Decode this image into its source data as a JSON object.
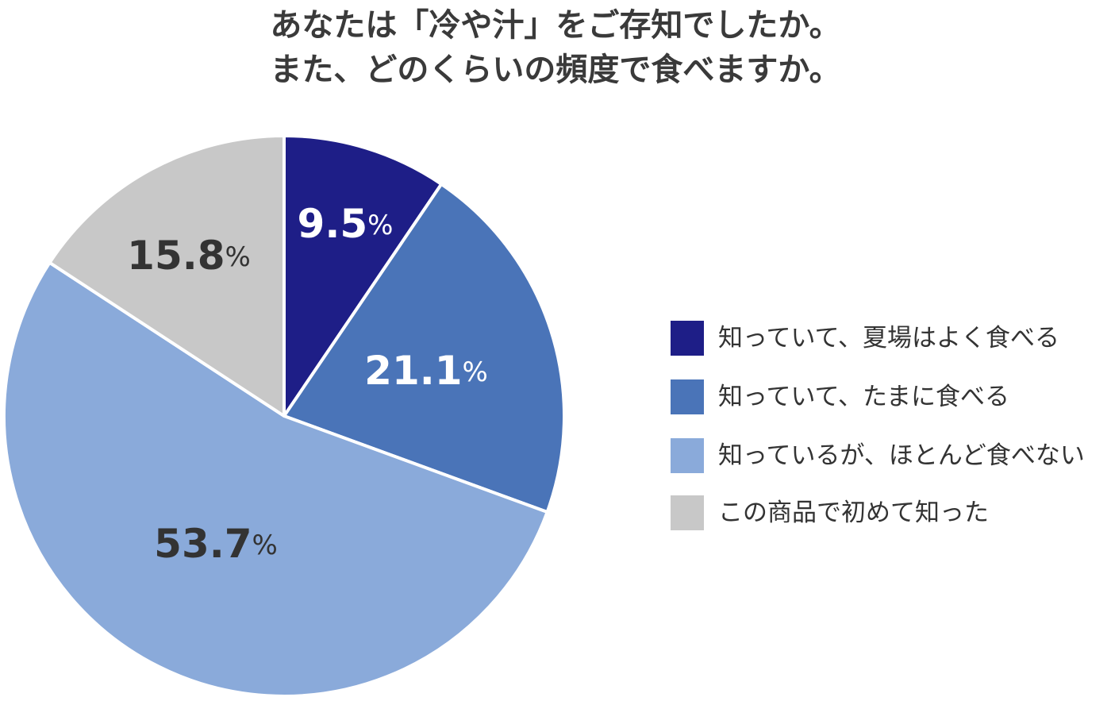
{
  "chart_data": {
    "type": "pie",
    "title_lines": [
      "あなたは「冷や汁」をご存知でしたか。",
      "また、どのくらいの頻度で食べますか。"
    ],
    "categories": [
      "知っていて、夏場はよく食べる",
      "知っていて、たまに食べる",
      "知っているが、ほとんど食べない",
      "この商品で初めて知った"
    ],
    "values": [
      9.5,
      21.1,
      53.7,
      15.8
    ],
    "value_labels": [
      "9.5",
      "21.1",
      "53.7",
      "15.8"
    ],
    "unit": "%",
    "colors": [
      "#1e1e87",
      "#4a74b8",
      "#8aaada",
      "#c8c8c8"
    ],
    "label_colors": [
      "#ffffff",
      "#ffffff",
      "#333333",
      "#333333"
    ],
    "start": "12 o'clock",
    "direction": "clockwise",
    "legend_position": "right"
  }
}
